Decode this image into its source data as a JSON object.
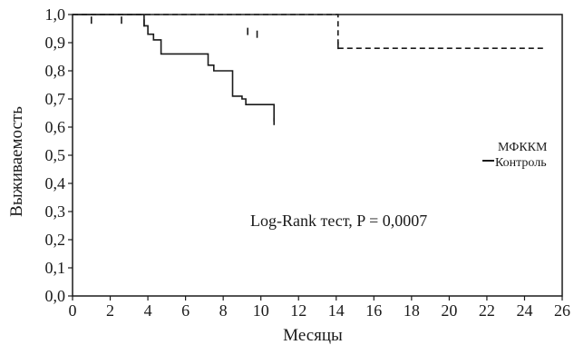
{
  "chart_data": {
    "type": "line",
    "title": "",
    "xlabel": "Месяцы",
    "ylabel": "Выживаемость",
    "xlim": [
      0,
      26
    ],
    "ylim": [
      0,
      1.0
    ],
    "x_ticks": [
      "0",
      "2",
      "4",
      "6",
      "8",
      "10",
      "12",
      "14",
      "16",
      "18",
      "20",
      "22",
      "24",
      "26"
    ],
    "y_ticks": [
      "0,0",
      "0,1",
      "0,2",
      "0,3",
      "0,4",
      "0,5",
      "0,6",
      "0,7",
      "0,8",
      "0,9",
      "1,0"
    ],
    "grid": false,
    "legend_position": "right",
    "legend": {
      "mfkkm_label": "МФККМ",
      "control_label": "Контроль"
    },
    "annotation": "Log-Rank тест, P = 0,0007",
    "series": [
      {
        "name": "МФККМ",
        "style": "dashed",
        "color": "#1a1a1a",
        "x": [
          0,
          14.1,
          14.1,
          25
        ],
        "y": [
          1.0,
          1.0,
          0.88,
          0.88
        ],
        "censor_x": [
          14.1
        ],
        "censor_y": [
          0.89
        ]
      },
      {
        "name": "Контроль",
        "style": "solid",
        "color": "#1a1a1a",
        "x": [
          0,
          3.8,
          3.8,
          4.0,
          4.0,
          4.3,
          4.3,
          4.7,
          4.7,
          5.2,
          5.2,
          7.2,
          7.2,
          7.5,
          7.5,
          8.5,
          8.5,
          9.0,
          9.0,
          9.2,
          9.2,
          9.5,
          9.5,
          10.7,
          10.7
        ],
        "y": [
          1.0,
          1.0,
          0.96,
          0.96,
          0.93,
          0.93,
          0.91,
          0.91,
          0.86,
          0.86,
          0.86,
          0.86,
          0.82,
          0.82,
          0.8,
          0.8,
          0.71,
          0.71,
          0.7,
          0.7,
          0.68,
          0.68,
          0.68,
          0.68,
          0.62
        ],
        "censor_x": [
          1.0,
          2.6,
          3.8,
          9.3,
          9.8,
          10.7
        ],
        "censor_y": [
          0.98,
          0.98,
          0.97,
          0.94,
          0.93,
          0.62
        ]
      }
    ]
  }
}
